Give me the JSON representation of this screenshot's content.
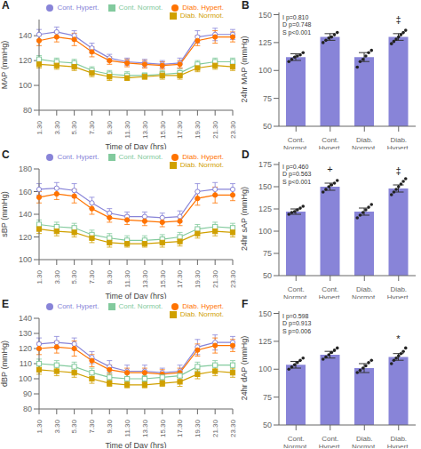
{
  "chart_data": [
    {
      "type": "line",
      "title": "A",
      "xlabel": "Time of Day (hrs)",
      "ylabel": "MAP (mmHg)",
      "categories": [
        "1.30",
        "3.30",
        "5.30",
        "7.30",
        "9.30",
        "11.30",
        "13.30",
        "15.30",
        "17.30",
        "19.30",
        "21.30",
        "23.30"
      ],
      "series": [
        {
          "name": "Cont. Hypert.",
          "color": "#8884d8",
          "marker": "circle_open",
          "values": [
            141,
            143,
            140,
            130,
            122,
            119,
            118,
            117,
            118,
            139,
            141,
            141
          ],
          "errors": [
            4,
            4,
            4,
            4,
            3,
            3,
            3,
            3,
            4,
            5,
            5,
            4
          ]
        },
        {
          "name": "Diab. Hypert.",
          "color": "#ff7300",
          "marker": "circle",
          "values": [
            136,
            139,
            137,
            127,
            120,
            118,
            117,
            116,
            117,
            136,
            139,
            139
          ],
          "errors": [
            4,
            4,
            5,
            4,
            3,
            3,
            3,
            3,
            3,
            4,
            5,
            4
          ]
        },
        {
          "name": "Cont. Normot.",
          "color": "#82ca9d",
          "marker": "square_open",
          "values": [
            121,
            119,
            118,
            112,
            109,
            108,
            108,
            109,
            110,
            117,
            119,
            119
          ],
          "errors": [
            3,
            3,
            3,
            3,
            3,
            3,
            2,
            3,
            3,
            3,
            3,
            3
          ]
        },
        {
          "name": "Diab. Normot.",
          "color": "#d0a000",
          "marker": "square",
          "values": [
            117,
            116,
            115,
            110,
            107,
            106,
            107,
            108,
            108,
            114,
            116,
            115
          ],
          "errors": [
            3,
            3,
            3,
            3,
            3,
            2,
            2,
            3,
            3,
            3,
            3,
            3
          ]
        }
      ],
      "ylim": [
        80,
        153
      ],
      "yticks": [
        80,
        100,
        120,
        140
      ],
      "legend": "top",
      "grid": false
    },
    {
      "type": "bar",
      "title": "B",
      "ylabel": "24hr MAP (mmHg)",
      "categories": [
        "Cont.\nNormot.",
        "Cont.\nHypert.",
        "Diab.\nNormot.",
        "Diab.\nHypert."
      ],
      "values": [
        112,
        130,
        112,
        130
      ],
      "errors": [
        3,
        3,
        4,
        3
      ],
      "points": [
        [
          108,
          110,
          112,
          113,
          114,
          116
        ],
        [
          125,
          127,
          129,
          130,
          132,
          134
        ],
        [
          103,
          108,
          110,
          113,
          116,
          118
        ],
        [
          124,
          126,
          128,
          130,
          132,
          134,
          136
        ]
      ],
      "significance": [
        null,
        null,
        null,
        "‡"
      ],
      "annotation": "I p=0.810\nD p=0.748\nS p<0.001",
      "color": "#8884d8",
      "ylim": [
        50,
        152
      ],
      "yticks": [
        50,
        75,
        100,
        125,
        150
      ],
      "grid": false
    },
    {
      "type": "line",
      "title": "C",
      "xlabel": "Time of Day (hrs)",
      "ylabel": "sBP (mmHg)",
      "categories": [
        "1.30",
        "3.30",
        "5.30",
        "7.30",
        "9.30",
        "11.30",
        "13.30",
        "15.30",
        "17.30",
        "19.30",
        "21.30",
        "23.30"
      ],
      "series": [
        {
          "name": "Cont. Hypert.",
          "color": "#8884d8",
          "marker": "circle_open",
          "values": [
            162,
            163,
            161,
            150,
            141,
            138,
            138,
            137,
            138,
            160,
            162,
            162
          ],
          "errors": [
            5,
            5,
            6,
            5,
            4,
            4,
            4,
            4,
            5,
            7,
            6,
            5
          ]
        },
        {
          "name": "Diab. Hypert.",
          "color": "#ff7300",
          "marker": "circle",
          "values": [
            155,
            158,
            156,
            145,
            137,
            135,
            134,
            133,
            134,
            154,
            157,
            157
          ],
          "errors": [
            5,
            5,
            6,
            5,
            4,
            4,
            4,
            4,
            4,
            6,
            7,
            5
          ]
        },
        {
          "name": "Cont. Normot.",
          "color": "#82ca9d",
          "marker": "square_open",
          "values": [
            131,
            129,
            128,
            122,
            119,
            117,
            117,
            118,
            120,
            127,
            129,
            128
          ],
          "errors": [
            4,
            4,
            4,
            4,
            4,
            4,
            4,
            4,
            4,
            4,
            4,
            4
          ]
        },
        {
          "name": "Diab. Normot.",
          "color": "#d0a000",
          "marker": "square",
          "values": [
            127,
            125,
            124,
            119,
            115,
            114,
            114,
            115,
            116,
            123,
            125,
            124
          ],
          "errors": [
            4,
            4,
            4,
            4,
            4,
            3,
            3,
            4,
            4,
            4,
            4,
            4
          ]
        }
      ],
      "ylim": [
        100,
        180
      ],
      "yticks": [
        100,
        120,
        140,
        160,
        180
      ],
      "legend": "top",
      "grid": false
    },
    {
      "type": "bar",
      "title": "D",
      "ylabel": "24hr sAP (mmHg)",
      "categories": [
        "Cont.\nNormot.",
        "Cont.\nHypert.",
        "Diab.\nNormot.",
        "Diab.\nHypert."
      ],
      "values": [
        122,
        150,
        122,
        148
      ],
      "errors": [
        3,
        4,
        4,
        4
      ],
      "points": [
        [
          119,
          121,
          122,
          124,
          126,
          128
        ],
        [
          144,
          147,
          150,
          152,
          154,
          157
        ],
        [
          115,
          118,
          121,
          124,
          127,
          130
        ],
        [
          141,
          144,
          147,
          150,
          153,
          156,
          159
        ]
      ],
      "significance": [
        null,
        "+",
        null,
        "‡"
      ],
      "annotation": "I p=0.460\nD p=0.563\nS p<0.001",
      "color": "#8884d8",
      "ylim": [
        50,
        178
      ],
      "yticks": [
        50,
        75,
        100,
        125,
        150,
        175
      ],
      "grid": false
    },
    {
      "type": "line",
      "title": "E",
      "xlabel": "Time of Day (hrs)",
      "ylabel": "dBP (mmHg)",
      "categories": [
        "1.30",
        "3.30",
        "5.30",
        "7.30",
        "9.30",
        "11.30",
        "13.30",
        "15.30",
        "17.30",
        "19.30",
        "21.30",
        "23.30"
      ],
      "series": [
        {
          "name": "Cont. Hypert.",
          "color": "#8884d8",
          "marker": "circle_open",
          "values": [
            123,
            124,
            123,
            114,
            108,
            105,
            105,
            104,
            105,
            121,
            124,
            124
          ],
          "errors": [
            4,
            4,
            4,
            4,
            4,
            4,
            4,
            3,
            4,
            5,
            5,
            4
          ]
        },
        {
          "name": "Diab. Hypert.",
          "color": "#ff7300",
          "marker": "circle",
          "values": [
            120,
            121,
            120,
            112,
            106,
            104,
            104,
            103,
            104,
            119,
            122,
            122
          ],
          "errors": [
            4,
            4,
            5,
            4,
            3,
            3,
            3,
            3,
            3,
            4,
            5,
            4
          ]
        },
        {
          "name": "Cont. Normot.",
          "color": "#82ca9d",
          "marker": "square_open",
          "values": [
            110,
            109,
            108,
            104,
            101,
            100,
            100,
            101,
            102,
            108,
            109,
            109
          ],
          "errors": [
            3,
            3,
            3,
            3,
            3,
            3,
            2,
            3,
            3,
            3,
            3,
            3
          ]
        },
        {
          "name": "Diab. Normot.",
          "color": "#d0a000",
          "marker": "square",
          "values": [
            106,
            105,
            104,
            100,
            97,
            96,
            96,
            97,
            98,
            103,
            105,
            104
          ],
          "errors": [
            3,
            3,
            3,
            3,
            2,
            2,
            2,
            2,
            3,
            3,
            3,
            3
          ]
        }
      ],
      "ylim": [
        80,
        140
      ],
      "yticks": [
        80,
        90,
        100,
        110,
        120,
        130,
        140
      ],
      "legend": "top",
      "grid": false
    },
    {
      "type": "bar",
      "title": "F",
      "ylabel": "24hr dAP (mmHg)",
      "categories": [
        "Cont.\nNormot.",
        "Cont.\nHypert.",
        "Diab.\nNormot.",
        "Diab.\nHypert."
      ],
      "values": [
        104,
        113,
        101,
        111
      ],
      "errors": [
        3,
        3,
        4,
        3
      ],
      "points": [
        [
          100,
          102,
          104,
          106,
          108,
          110
        ],
        [
          109,
          111,
          113,
          115,
          117,
          119
        ],
        [
          97,
          99,
          101,
          103,
          106,
          108
        ],
        [
          105,
          108,
          110,
          112,
          114,
          116,
          119
        ]
      ],
      "significance": [
        null,
        null,
        null,
        "*"
      ],
      "annotation": "I p=0.598\nD p=0.913\nS p=0.006",
      "color": "#8884d8",
      "ylim": [
        50,
        152
      ],
      "yticks": [
        50,
        75,
        100,
        125,
        150
      ],
      "grid": false
    }
  ]
}
